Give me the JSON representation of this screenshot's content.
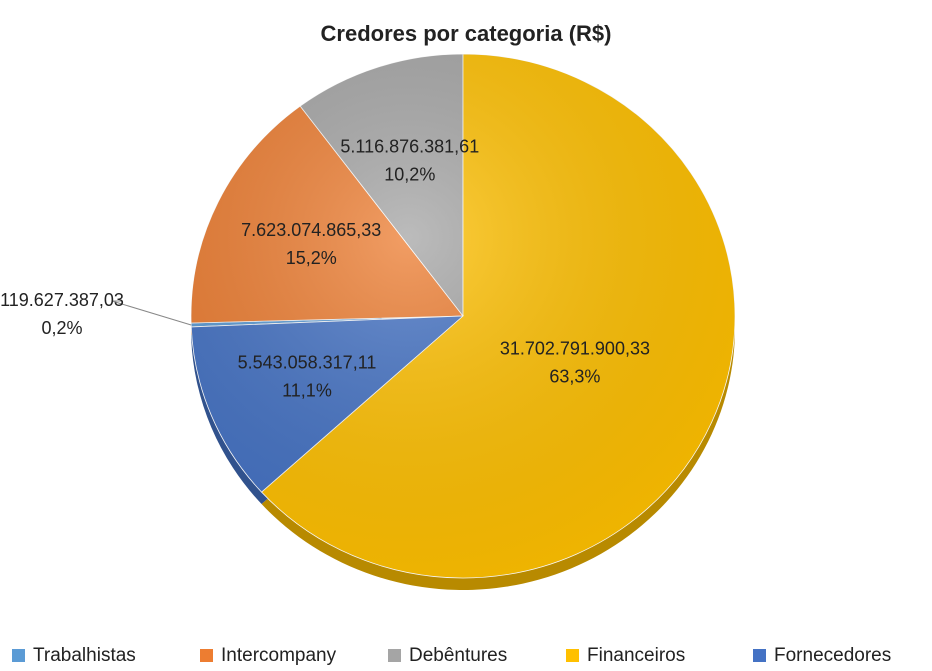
{
  "chart_data": {
    "type": "pie",
    "title": "Credores por categoria (R$)",
    "categories": [
      "Trabalhistas",
      "Intercompany",
      "Debêntures",
      "Financeiros",
      "Fornecedores"
    ],
    "values": [
      119627387.03,
      7623074865.33,
      5116876381.61,
      31702791900.33,
      5543058317.11
    ],
    "value_labels": [
      "119.627.387,03",
      "7.623.074.865,33",
      "5.116.876.381,61",
      "31.702.791.900,33",
      "5.543.058.317,11"
    ],
    "percentages": [
      0.2,
      15.2,
      10.2,
      63.3,
      11.1
    ],
    "percentage_labels": [
      "0,2%",
      "15,2%",
      "10,2%",
      "63,3%",
      "11,1%"
    ],
    "colors": [
      "#5b9bd5",
      "#ed7d31",
      "#a5a5a5",
      "#ffc000",
      "#4472c4"
    ],
    "legend": "bottom"
  }
}
